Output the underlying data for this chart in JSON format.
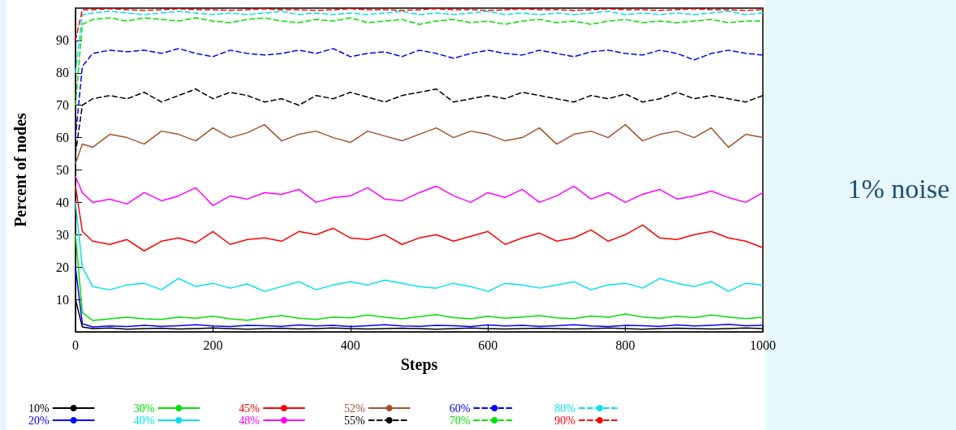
{
  "chart_data": {
    "type": "line",
    "xlabel": "Steps",
    "ylabel": "Percent of nodes",
    "annotations": [
      "1% noise"
    ],
    "x": [
      0,
      10,
      25,
      50,
      75,
      100,
      125,
      150,
      175,
      200,
      225,
      250,
      275,
      300,
      325,
      350,
      375,
      400,
      425,
      450,
      475,
      500,
      525,
      550,
      575,
      600,
      625,
      650,
      675,
      700,
      725,
      750,
      775,
      800,
      825,
      850,
      875,
      900,
      925,
      950,
      975,
      1000
    ],
    "xlim": [
      0,
      1000
    ],
    "xticks": [
      0,
      200,
      400,
      600,
      800,
      1000
    ],
    "ylim": [
      0,
      100
    ],
    "yticks": [
      10,
      20,
      30,
      40,
      50,
      60,
      70,
      80,
      90
    ],
    "grid": false,
    "legend": "bottom",
    "marker": "none",
    "series": [
      {
        "name": "10%",
        "color": "#000000",
        "line_style": "solid",
        "values": [
          10,
          1.5,
          1,
          1.2,
          0.8,
          1,
          1.1,
          0.9,
          1,
          1.2,
          1,
          0.8,
          1,
          1.1,
          0.9,
          1,
          1.2,
          1,
          0.9,
          1,
          1.1,
          1,
          0.8,
          1,
          1.2,
          1,
          0.9,
          1,
          1.1,
          1,
          0.9,
          1,
          1.2,
          1,
          0.8,
          1,
          1.1,
          1,
          0.9,
          1,
          1.2,
          1
        ]
      },
      {
        "name": "20%",
        "color": "#0000ff",
        "line_style": "solid",
        "values": [
          20,
          2.5,
          1.5,
          1.8,
          1.6,
          2,
          1.7,
          1.9,
          2.2,
          1.8,
          1.6,
          2,
          1.9,
          1.7,
          2.1,
          1.8,
          2,
          1.6,
          1.9,
          2.2,
          1.8,
          1.7,
          2,
          1.9,
          1.6,
          2.1,
          1.8,
          2,
          1.7,
          1.9,
          2.2,
          1.8,
          1.6,
          2,
          1.9,
          1.7,
          2.1,
          1.8,
          2,
          2.3,
          1.9,
          2
        ]
      },
      {
        "name": "30%",
        "color": "#00e000",
        "line_style": "solid",
        "values": [
          30,
          6,
          3.5,
          4,
          4.5,
          4,
          3.8,
          4.6,
          4.2,
          4.8,
          4,
          3.6,
          4.4,
          5,
          4.2,
          3.8,
          4.6,
          4.3,
          5.2,
          4.5,
          4,
          4.7,
          5.3,
          4.4,
          4,
          4.8,
          4.2,
          4.6,
          5,
          4.3,
          4.1,
          4.9,
          4.5,
          5.5,
          4.6,
          4.2,
          4.8,
          4.4,
          5.2,
          4.6,
          4.1,
          4.5
        ]
      },
      {
        "name": "40%",
        "color": "#00e0f0",
        "line_style": "solid",
        "values": [
          40,
          20,
          14,
          13,
          14.5,
          15,
          13,
          16.5,
          14,
          15,
          13.5,
          14.8,
          12.5,
          14,
          15.5,
          13,
          14.5,
          15.5,
          14.5,
          16,
          15,
          14,
          13.5,
          15,
          14,
          12.5,
          15,
          14.5,
          13.5,
          14.5,
          15.5,
          13,
          14.5,
          15,
          13.5,
          16.5,
          15,
          14,
          15.5,
          12.5,
          15,
          14.5
        ]
      },
      {
        "name": "45%",
        "color": "#ff0000",
        "line_style": "solid",
        "values": [
          45,
          31,
          28,
          27,
          28.5,
          25,
          28,
          29,
          27.5,
          31,
          27,
          28.5,
          29,
          28,
          31,
          30,
          32,
          29,
          28.5,
          30,
          27,
          29,
          30,
          28,
          29.5,
          31,
          27,
          29,
          30.5,
          28,
          29,
          31.5,
          28,
          30,
          33,
          29,
          28.5,
          30,
          31,
          29,
          28,
          26
        ]
      },
      {
        "name": "48%",
        "color": "#ff00ff",
        "line_style": "solid",
        "values": [
          48,
          43,
          40,
          41,
          39.5,
          43,
          40.5,
          42,
          44.5,
          39,
          42,
          41,
          43,
          42.5,
          44,
          40,
          41.5,
          42,
          44.5,
          41,
          40.5,
          43,
          45,
          42,
          40,
          43,
          41.5,
          44,
          40,
          42,
          45,
          41,
          43,
          40,
          42.5,
          44,
          41,
          42,
          43.5,
          41.5,
          40,
          43
        ]
      },
      {
        "name": "52%",
        "color": "#a0522d",
        "line_style": "solid",
        "values": [
          52,
          58,
          57,
          61,
          60,
          58,
          62,
          61,
          59,
          63,
          60,
          61.5,
          64,
          59,
          61,
          62,
          60,
          58.5,
          62,
          60.5,
          59,
          61,
          63,
          60,
          62,
          61,
          59,
          60,
          63,
          58,
          61,
          62,
          60,
          64,
          59,
          61,
          62,
          60,
          63,
          57,
          61,
          60
        ]
      },
      {
        "name": "55%",
        "color": "#000000",
        "line_style": "dashed",
        "values": [
          55,
          70,
          72,
          73,
          72,
          74,
          71,
          73,
          75,
          72,
          74,
          73,
          71,
          72,
          70,
          73,
          72,
          74,
          72.5,
          71,
          73,
          74,
          75,
          71,
          72,
          73,
          72,
          74,
          73,
          72,
          71,
          73,
          72,
          73.5,
          71,
          72,
          74,
          72,
          73,
          72,
          71,
          73
        ]
      },
      {
        "name": "60%",
        "color": "#0000ff",
        "line_style": "dashed",
        "values": [
          60,
          82,
          86,
          87,
          86.5,
          87,
          86,
          87.5,
          86,
          85,
          87,
          86,
          85.5,
          86,
          87,
          86,
          87.5,
          85,
          86,
          86.5,
          85,
          87,
          86,
          84.5,
          86,
          87,
          86,
          85.5,
          87,
          86,
          85,
          86.5,
          87,
          86,
          85.5,
          87,
          86,
          84,
          86,
          87,
          86,
          85.5
        ]
      },
      {
        "name": "70%",
        "color": "#00e000",
        "line_style": "dashed",
        "values": [
          70,
          95,
          96.5,
          97,
          96,
          97,
          96.5,
          96,
          97,
          96,
          95.5,
          96.5,
          97,
          96,
          95.5,
          96.5,
          96,
          97,
          95.5,
          96,
          96.5,
          95,
          96,
          96.5,
          95.5,
          96,
          95,
          96,
          96.5,
          95.5,
          96,
          95,
          96,
          96.5,
          95.5,
          96,
          95.5,
          96,
          96.5,
          95.5,
          96,
          96
        ]
      },
      {
        "name": "80%",
        "color": "#00e0f0",
        "line_style": "dashed",
        "values": [
          80,
          98,
          98.5,
          99,
          98.5,
          98,
          98.5,
          99,
          98.5,
          98,
          98.5,
          98,
          98.5,
          99,
          98,
          98.5,
          98,
          98.5,
          98,
          98.5,
          99,
          98,
          98.5,
          98,
          98.5,
          99,
          98,
          98.5,
          98,
          98.5,
          98,
          98.5,
          99,
          98,
          98.5,
          98,
          98.5,
          98,
          98.5,
          99,
          98,
          98.5
        ]
      },
      {
        "name": "90%",
        "color": "#ff0000",
        "line_style": "dashed",
        "values": [
          90,
          99.5,
          99.5,
          99.8,
          99.5,
          99.3,
          99.5,
          99.8,
          99.5,
          99.5,
          99.3,
          99.5,
          99.8,
          99.5,
          99.5,
          99.3,
          99.5,
          99.8,
          99.5,
          99.5,
          99.3,
          99.5,
          99.8,
          99.5,
          99.5,
          99.3,
          99.5,
          99.8,
          99.5,
          99.5,
          99.3,
          99.5,
          99.8,
          99.5,
          99.5,
          99.3,
          99.5,
          99.8,
          99.5,
          99.5,
          99.3,
          99.5
        ]
      }
    ]
  }
}
